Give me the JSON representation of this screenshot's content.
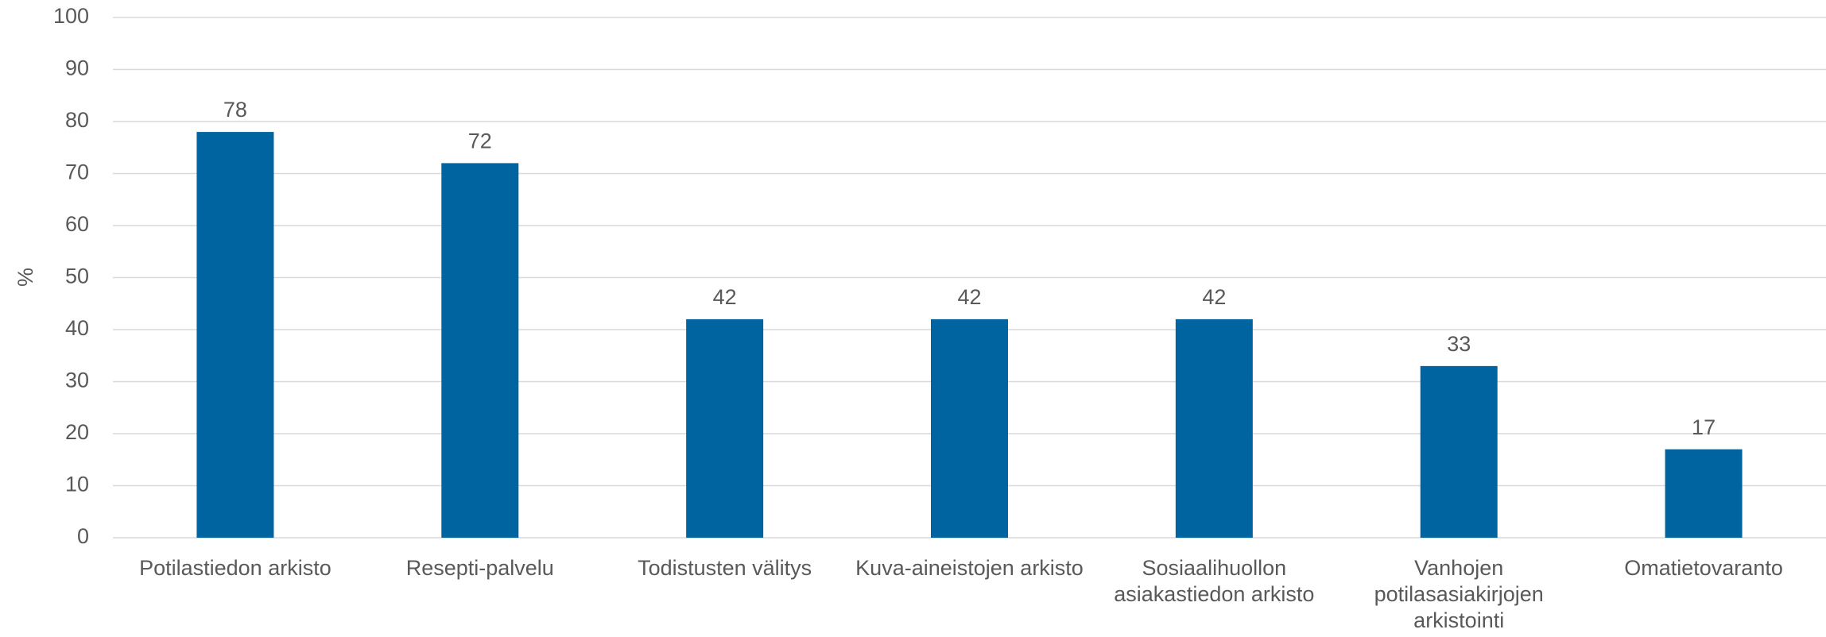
{
  "chart_data": {
    "type": "bar",
    "y_label": "%",
    "categories": [
      "Potilastiedon arkisto",
      "Resepti-palvelu",
      "Todistusten välitys",
      "Kuva-aineistojen arkisto",
      "Sosiaalihuollon asiakastiedon arkisto",
      "Vanhojen potilasasiakirjojen arkistointi",
      "Omatietovaranto"
    ],
    "values": [
      78,
      72,
      42,
      42,
      42,
      33,
      17
    ],
    "color": "#0064a0",
    "ylim": [
      0,
      100
    ],
    "yticks": [
      0,
      10,
      20,
      30,
      40,
      50,
      60,
      70,
      80,
      90,
      100
    ],
    "grid": true
  }
}
